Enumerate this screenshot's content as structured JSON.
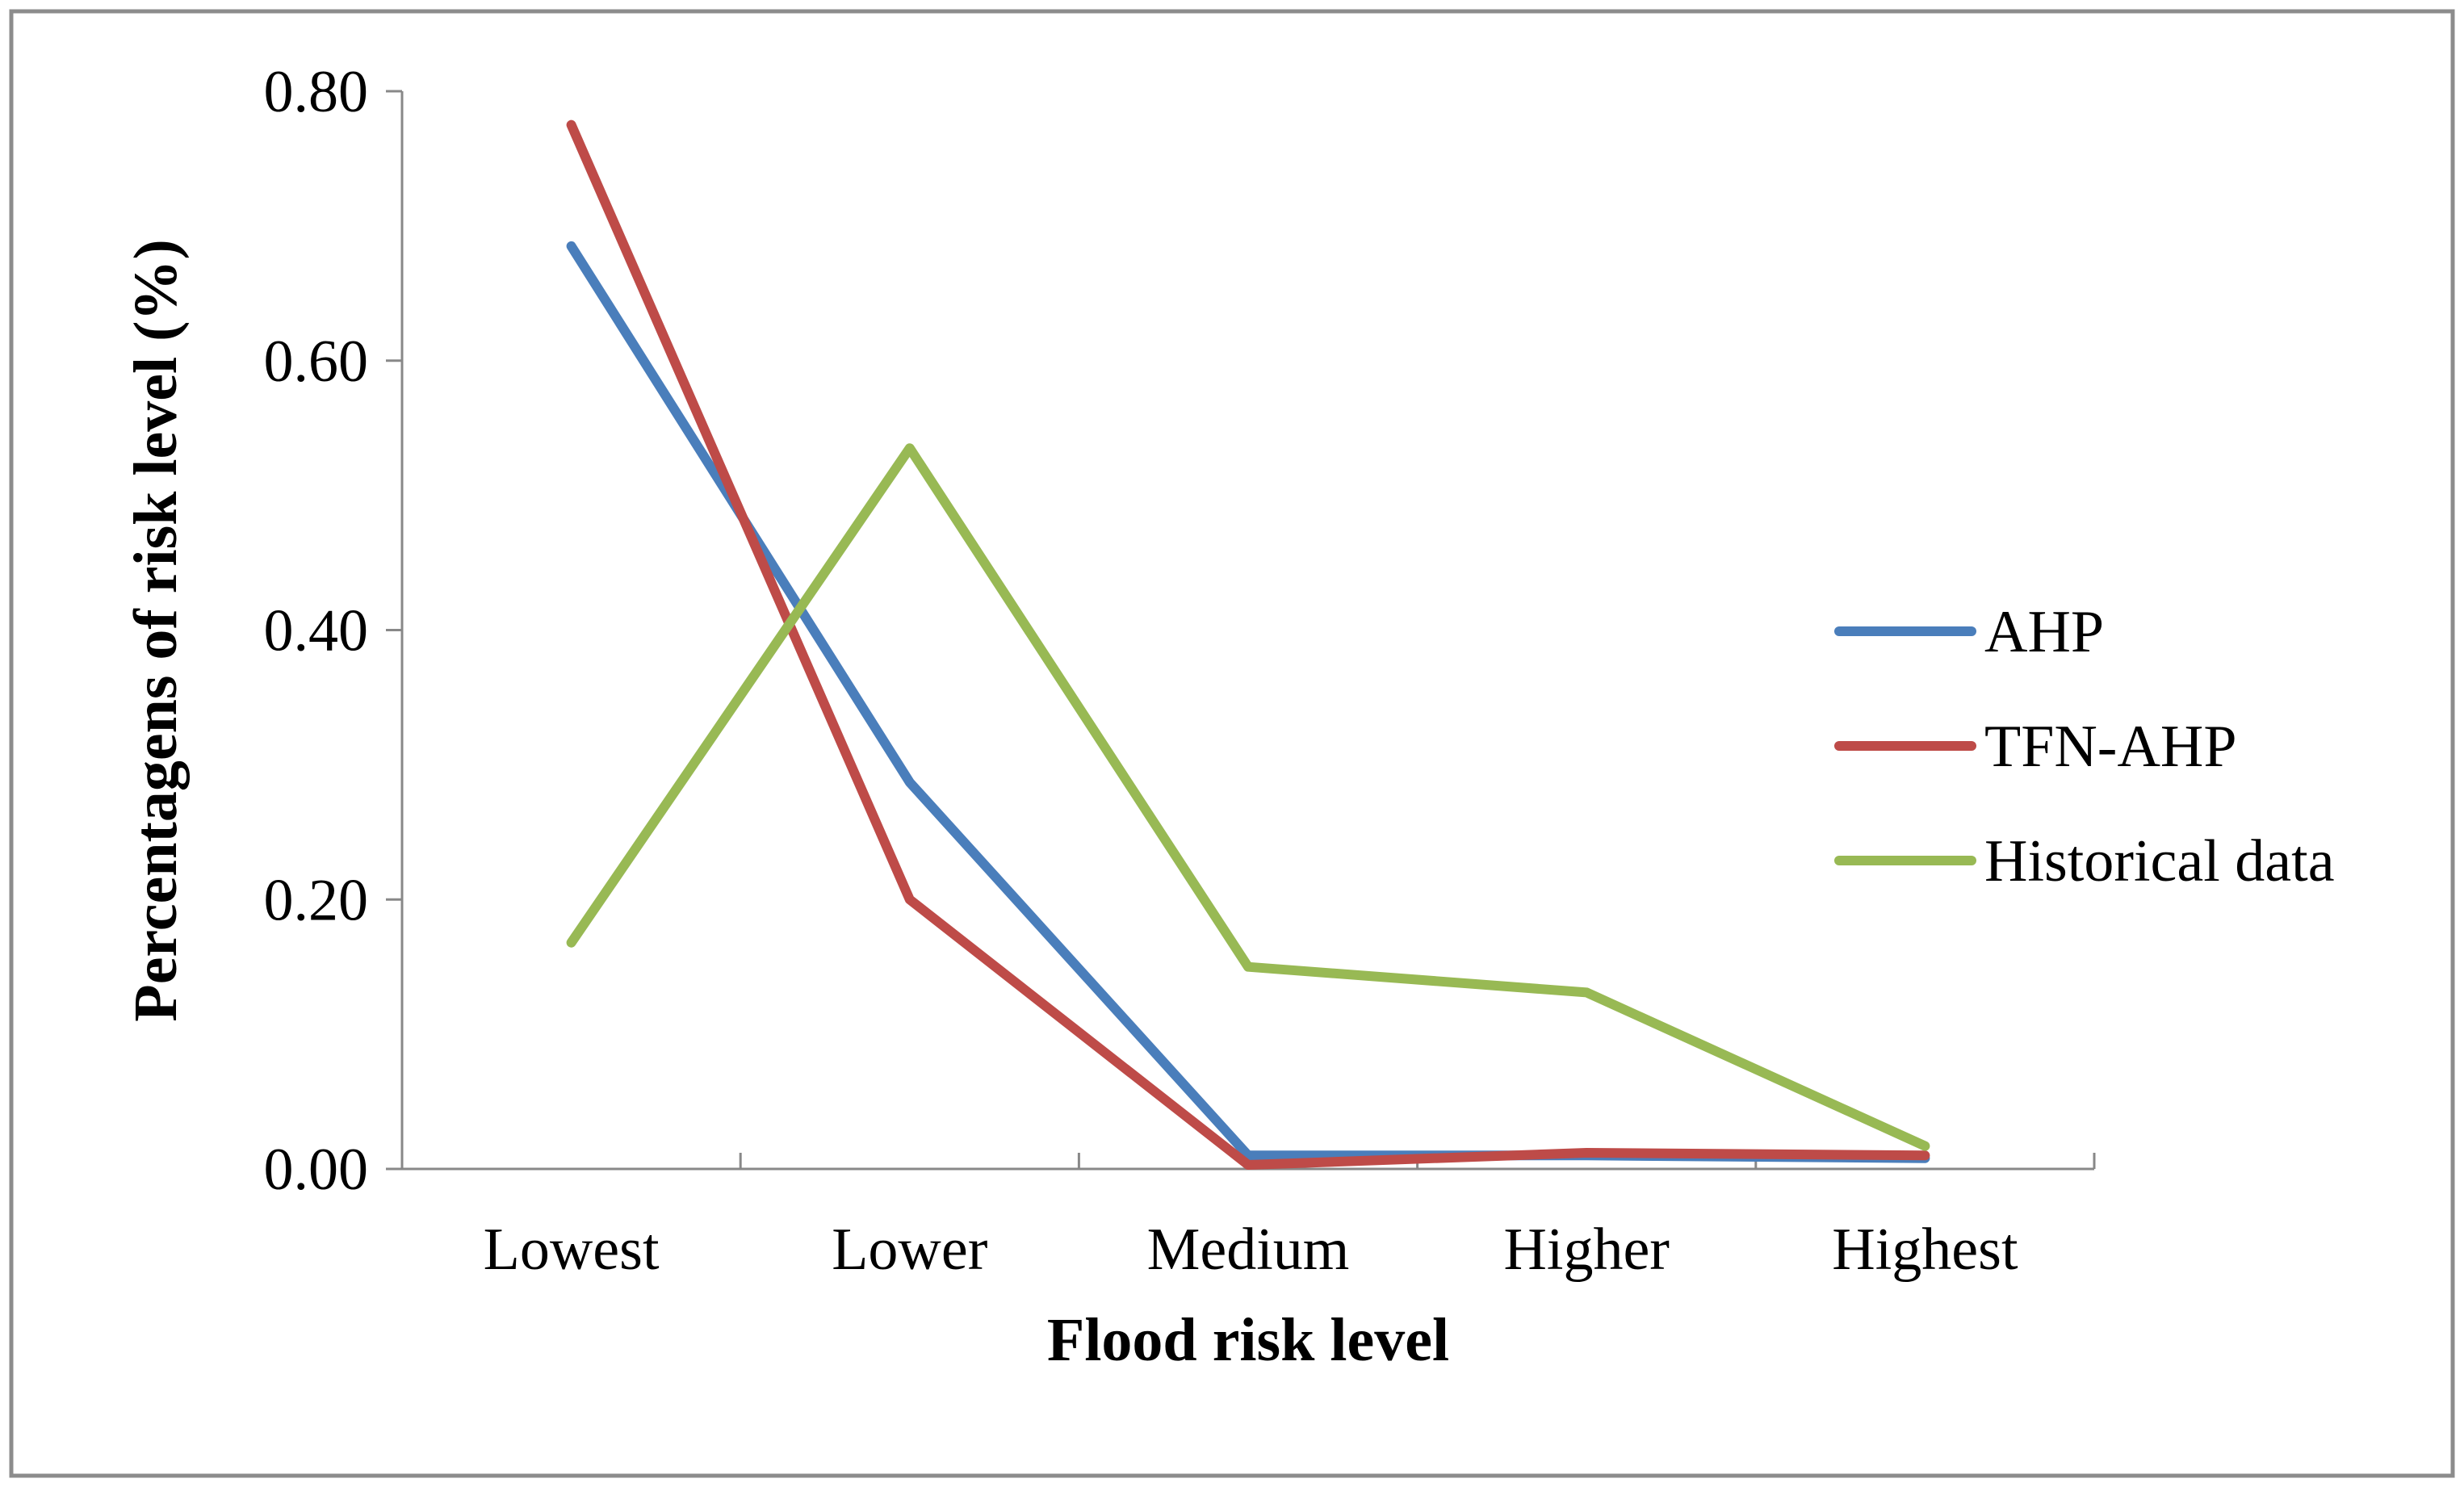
{
  "chart_data": {
    "type": "line",
    "title": "",
    "xlabel": "Flood risk level",
    "ylabel": "Percentagens of risk level (%)",
    "categories": [
      "Lowest",
      "Lower",
      "Medium",
      "Higher",
      "Highest"
    ],
    "ylim": [
      0,
      0.8
    ],
    "yticks": [
      "0.00",
      "0.20",
      "0.40",
      "0.60",
      "0.80"
    ],
    "grid": false,
    "legend_position": "right",
    "series": [
      {
        "name": "AHP",
        "color": "#4a7ebb",
        "values": [
          0.685,
          0.287,
          0.01,
          0.01,
          0.008
        ]
      },
      {
        "name": "TFN-AHP",
        "color": "#be4b48",
        "values": [
          0.775,
          0.2,
          0.003,
          0.012,
          0.01
        ]
      },
      {
        "name": "Historical data",
        "color": "#98b954",
        "values": [
          0.168,
          0.535,
          0.15,
          0.131,
          0.017
        ]
      }
    ]
  }
}
